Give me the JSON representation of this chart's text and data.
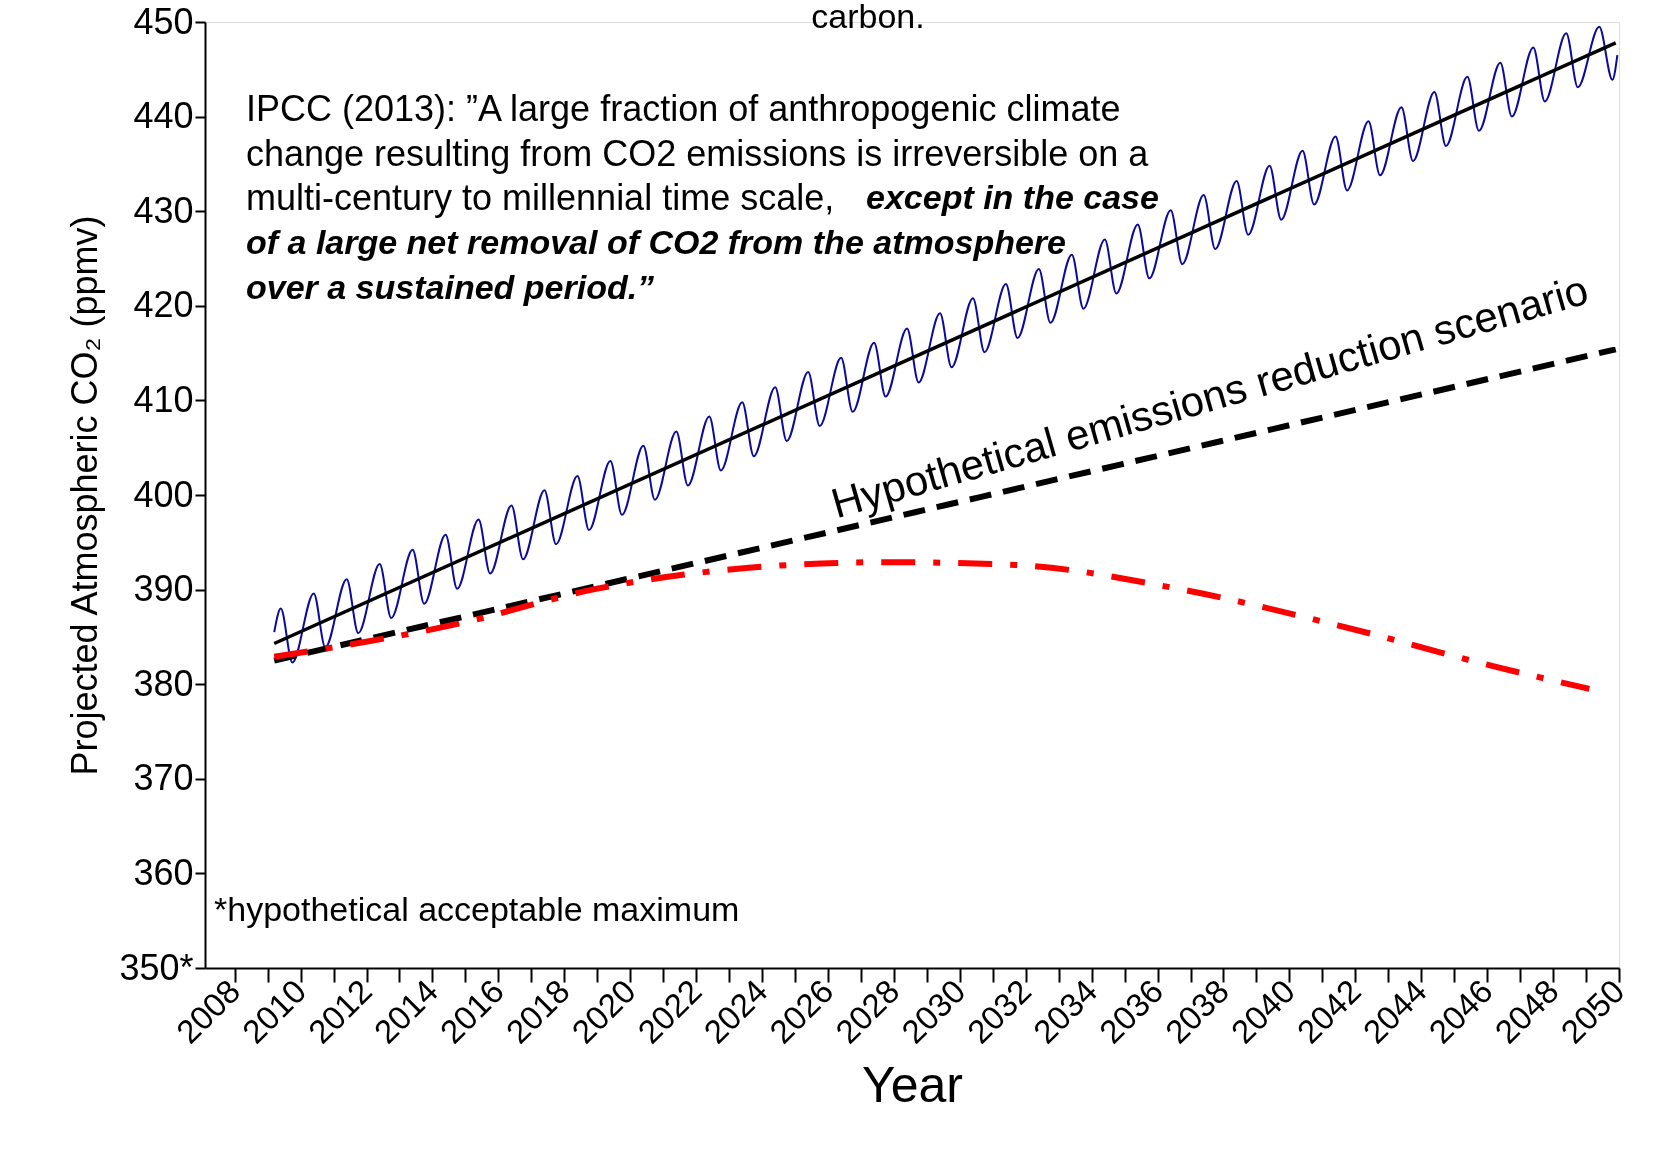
{
  "chart_data": {
    "type": "line",
    "title": "carbon.",
    "xlabel": "Year",
    "ylabel": "Projected Atmospheric CO₂ (ppmv)",
    "xlim": [
      2007.1,
      2050
    ],
    "xticks": [
      2008,
      {
        "value": 2009,
        "label": null
      },
      2010,
      {
        "value": 2011,
        "label": null
      },
      2012,
      {
        "value": 2013,
        "label": null
      },
      2014,
      {
        "value": 2015,
        "label": null
      },
      2016,
      {
        "value": 2017,
        "label": null
      },
      2018,
      {
        "value": 2019,
        "label": null
      },
      2020,
      {
        "value": 2021,
        "label": null
      },
      2022,
      {
        "value": 2023,
        "label": null
      },
      2024,
      {
        "value": 2025,
        "label": null
      },
      2026,
      {
        "value": 2027,
        "label": null
      },
      2028,
      {
        "value": 2029,
        "label": null
      },
      2030,
      {
        "value": 2031,
        "label": null
      },
      2032,
      {
        "value": 2033,
        "label": null
      },
      2034,
      {
        "value": 2035,
        "label": null
      },
      2036,
      {
        "value": 2037,
        "label": null
      },
      2038,
      {
        "value": 2039,
        "label": null
      },
      2040,
      {
        "value": 2041,
        "label": null
      },
      2042,
      {
        "value": 2043,
        "label": null
      },
      2044,
      {
        "value": 2045,
        "label": null
      },
      2046,
      {
        "value": 2047,
        "label": null
      },
      2048,
      {
        "value": 2049,
        "label": null
      },
      2050
    ],
    "ylim": [
      350,
      450
    ],
    "yticks": [
      {
        "value": 350,
        "label": "350*"
      },
      360,
      370,
      380,
      390,
      400,
      410,
      420,
      430,
      440,
      450
    ],
    "grid": false,
    "marker": "none",
    "series": [
      {
        "color": "#0a0a9c",
        "line_style": "solid",
        "x": [
          2009.2,
          2009.4,
          2009.75,
          2010.4,
          2010.75,
          2011.4,
          2011.75,
          2012.4,
          2012.75,
          2013.4,
          2013.75,
          2014.4,
          2014.75,
          2015.4,
          2015.75,
          2016.4,
          2016.75,
          2017.4,
          2017.75,
          2018.4,
          2018.75,
          2019.4,
          2019.75,
          2020.4,
          2020.75,
          2021.4,
          2021.75,
          2022.4,
          2022.75,
          2023.4,
          2023.75,
          2024.4,
          2024.75,
          2025.4,
          2025.75,
          2026.4,
          2026.75,
          2027.4,
          2027.75,
          2028.4,
          2028.75,
          2029.4,
          2029.75,
          2030.4,
          2030.75,
          2031.4,
          2031.75,
          2032.4,
          2032.75,
          2033.4,
          2033.75,
          2034.4,
          2034.75,
          2035.4,
          2035.75,
          2036.4,
          2036.75,
          2037.4,
          2037.75,
          2038.4,
          2038.75,
          2039.4,
          2039.75,
          2040.4,
          2040.75,
          2041.4,
          2041.75,
          2042.4,
          2042.75,
          2043.4,
          2043.75,
          2044.4,
          2044.75,
          2045.4,
          2045.75,
          2046.4,
          2046.75,
          2047.4,
          2047.75,
          2048.4,
          2048.75,
          2049.4,
          2049.8,
          2049.95
        ],
        "values": [
          385.5,
          388.0,
          382.3,
          389.6,
          383.9,
          391.1,
          385.4,
          392.7,
          387.0,
          394.2,
          388.5,
          395.8,
          390.1,
          397.4,
          391.7,
          398.9,
          393.2,
          400.5,
          394.8,
          402.0,
          396.3,
          403.6,
          397.9,
          405.2,
          399.5,
          406.7,
          401.0,
          408.3,
          402.6,
          409.8,
          404.1,
          411.4,
          405.7,
          413.0,
          407.3,
          414.5,
          408.8,
          416.1,
          410.4,
          417.6,
          411.9,
          419.2,
          413.5,
          420.8,
          415.1,
          422.3,
          416.6,
          423.9,
          418.2,
          425.4,
          419.7,
          427.0,
          421.3,
          428.6,
          422.9,
          430.1,
          424.4,
          431.7,
          426.0,
          433.2,
          427.5,
          434.8,
          429.1,
          436.4,
          430.7,
          437.9,
          432.2,
          439.5,
          433.8,
          441.0,
          435.3,
          442.6,
          436.9,
          444.2,
          438.5,
          445.7,
          440.0,
          447.3,
          441.6,
          448.8,
          443.1,
          449.5,
          443.9,
          446.5
        ]
      },
      {
        "color": "#000000",
        "line_style": "solid",
        "x": [
          2009.2,
          2049.9
        ],
        "values": [
          384.3,
          447.8
        ]
      },
      {
        "color": "#000000",
        "line_style": "dashed",
        "x": [
          2009.2,
          2020,
          2049.9
        ],
        "values": [
          382.5,
          391.2,
          415.4
        ]
      },
      {
        "color": "#ff0000",
        "line_style": "dashdot",
        "x": [
          2009.2,
          2014.8,
          2019,
          2023.6,
          2027.8,
          2031.7,
          2036.6,
          2041.5,
          2046.3,
          2049.1
        ],
        "values": [
          382.9,
          386.4,
          390.1,
          392.3,
          392.9,
          392.6,
          390.1,
          386.2,
          381.8,
          379.5
        ]
      }
    ],
    "annotations": [
      "IPCC (2013): ”A large fraction of anthropogenic climate\nchange resulting from CO2 emissions is irreversible on a\nmulti-century to millennial time scale,",
      "except in the case",
      "of a large net removal of CO2 from the atmosphere\nover a sustained period.”",
      "*hypothetical acceptable maximum",
      "Hypothetical emissions reduction scenario"
    ]
  }
}
